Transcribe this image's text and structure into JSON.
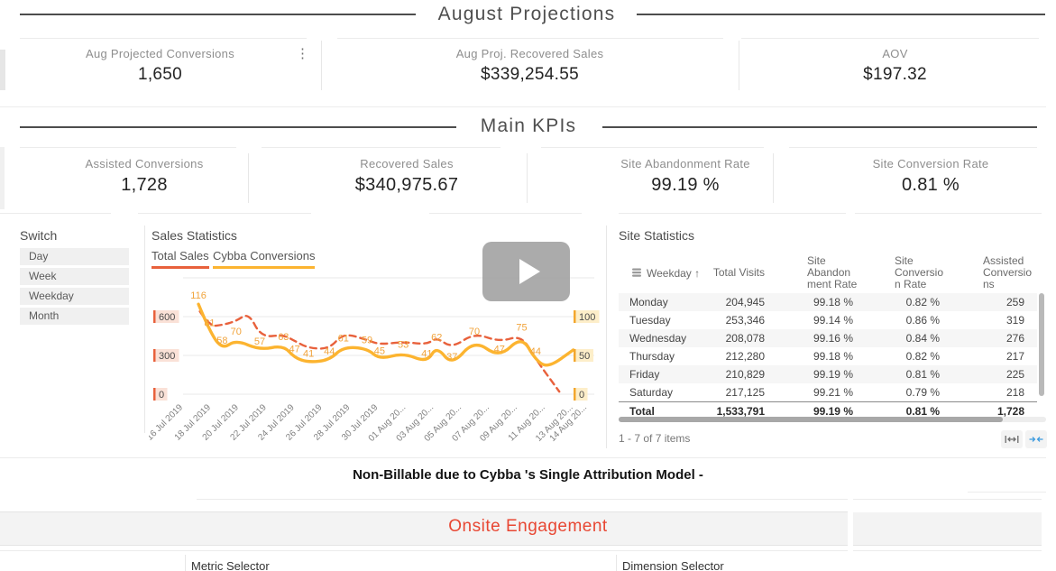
{
  "page": {
    "august_header": "August Projections",
    "main_kpis_header": "Main KPIs",
    "note": "Non-Billable due to Cybba 's Single Attribution Model -",
    "onsite_header": "Onsite Engagement",
    "metric_selector_label": "Metric Selector",
    "dimension_selector_label": "Dimension Selector"
  },
  "colors": {
    "total_sales": "#e8613c",
    "cybba_conversions": "#fcb430",
    "data_label": "#f1a43c",
    "onsite_header": "#e84733",
    "collapse_icon_blue": "#3a9ade",
    "stripe": "#f6f6f6"
  },
  "icons": {
    "kebab_menu": "⋮",
    "sort_ascending": "↑",
    "play": "play-triangle",
    "weekday_group": "stack",
    "fit_columns": "resize-horizontal",
    "collapse_columns": "arrows-inward"
  },
  "projection_kpis": [
    {
      "label": "Aug Projected Conversions",
      "value": "1,650"
    },
    {
      "label": "Aug Proj. Recovered Sales",
      "value": "$339,254.55"
    },
    {
      "label": "AOV",
      "value": "$197.32"
    }
  ],
  "main_kpis": [
    {
      "label": "Assisted Conversions",
      "value": "1,728"
    },
    {
      "label": "Recovered Sales",
      "value": "$340,975.67"
    },
    {
      "label": "Site Abandonment Rate",
      "value": "99.19 %"
    },
    {
      "label": "Site Conversion Rate",
      "value": "0.81 %"
    }
  ],
  "switch_panel": {
    "title": "Switch",
    "items": [
      "Day",
      "Week",
      "Weekday",
      "Month"
    ]
  },
  "sales_statistics": {
    "title": "Sales Statistics",
    "tabs": [
      {
        "label": "Total Sales",
        "color": "#e8613c"
      },
      {
        "label": "Cybba Conversions",
        "color": "#fcb430"
      }
    ]
  },
  "chart_data": {
    "type": "line",
    "title": "Sales Statistics",
    "grid": true,
    "legend_position": "top",
    "x_axis": {
      "labels": [
        "16 Jul 2019",
        "18 Jul 2019",
        "20 Jul 2019",
        "22 Jul 2019",
        "24 Jul 2019",
        "26 Jul 2019",
        "28 Jul 2019",
        "30 Jul 2019",
        "01 Aug 20...",
        "03 Aug 20...",
        "05 Aug 20...",
        "07 Aug 20...",
        "09 Aug 20...",
        "11 Aug 20...",
        "13 Aug 20...",
        "14 Aug 20..."
      ],
      "label_days": [
        0,
        2,
        4,
        6,
        8,
        10,
        12,
        14,
        16,
        18,
        20,
        22,
        24,
        26,
        28,
        29
      ],
      "start_date": "16 Jul 2019",
      "total_days": 29
    },
    "left_axis": {
      "series": "Total Sales",
      "ticks": [
        600,
        300,
        0
      ],
      "max": 900
    },
    "right_axis": {
      "series": "Cybba Conversions",
      "ticks": [
        100,
        50,
        0
      ],
      "max": 150
    },
    "series": [
      {
        "name": "Total Sales",
        "axis": "left",
        "style": "dashed",
        "color": "#e8613c",
        "values_estimated": true,
        "points": [
          [
            1.4,
            640
          ],
          [
            2.1,
            525
          ],
          [
            3,
            535
          ],
          [
            4,
            565
          ],
          [
            4.9,
            630
          ],
          [
            5.8,
            440
          ],
          [
            7.4,
            460
          ],
          [
            8.2,
            412
          ],
          [
            9.2,
            356
          ],
          [
            10.7,
            350
          ],
          [
            11.7,
            474
          ],
          [
            13.4,
            420
          ],
          [
            14.3,
            384
          ],
          [
            16,
            405
          ],
          [
            17.7,
            384
          ],
          [
            18.4,
            440
          ],
          [
            19.5,
            356
          ],
          [
            21.1,
            474
          ],
          [
            22.9,
            405
          ],
          [
            24.5,
            455
          ],
          [
            25.5,
            272
          ],
          [
            27.2,
            20
          ]
        ]
      },
      {
        "name": "Cybba Conversions",
        "axis": "right",
        "style": "solid",
        "color": "#fcb430",
        "labeled_points": 20,
        "points": [
          [
            1.3,
            116
          ],
          [
            2.1,
            81
          ],
          [
            3,
            58
          ],
          [
            4,
            70
          ],
          [
            5.7,
            57
          ],
          [
            7.4,
            63
          ],
          [
            8.2,
            47
          ],
          [
            9.2,
            41
          ],
          [
            10.7,
            44
          ],
          [
            11.7,
            61
          ],
          [
            13.4,
            59
          ],
          [
            14.3,
            45
          ],
          [
            16,
            53
          ],
          [
            17.7,
            41
          ],
          [
            18.4,
            62
          ],
          [
            19.5,
            37
          ],
          [
            21.1,
            70
          ],
          [
            22.9,
            47
          ],
          [
            24.5,
            75
          ],
          [
            25.5,
            44
          ],
          [
            26.4,
            34
          ],
          [
            28.2,
            57
          ]
        ]
      }
    ]
  },
  "site_statistics": {
    "title": "Site Statistics",
    "columns": [
      "Weekday",
      "Total Visits",
      "Site\nAbandon\nment Rate",
      "Site\nConversio\nn Rate",
      "Assisted\nConversio\nns"
    ],
    "rows": [
      [
        "Monday",
        "204,945",
        "99.18 %",
        "0.82 %",
        "259"
      ],
      [
        "Tuesday",
        "253,346",
        "99.14 %",
        "0.86 %",
        "319"
      ],
      [
        "Wednesday",
        "208,078",
        "99.16 %",
        "0.84 %",
        "276"
      ],
      [
        "Thursday",
        "212,280",
        "99.18 %",
        "0.82 %",
        "217"
      ],
      [
        "Friday",
        "210,829",
        "99.19 %",
        "0.81 %",
        "225"
      ],
      [
        "Saturday",
        "217,125",
        "99.21 %",
        "0.79 %",
        "218"
      ]
    ],
    "total_row": [
      "Total",
      "1,533,791",
      "99.19 %",
      "0.81 %",
      "1,728"
    ],
    "pagination": "1 - 7 of 7 items"
  }
}
